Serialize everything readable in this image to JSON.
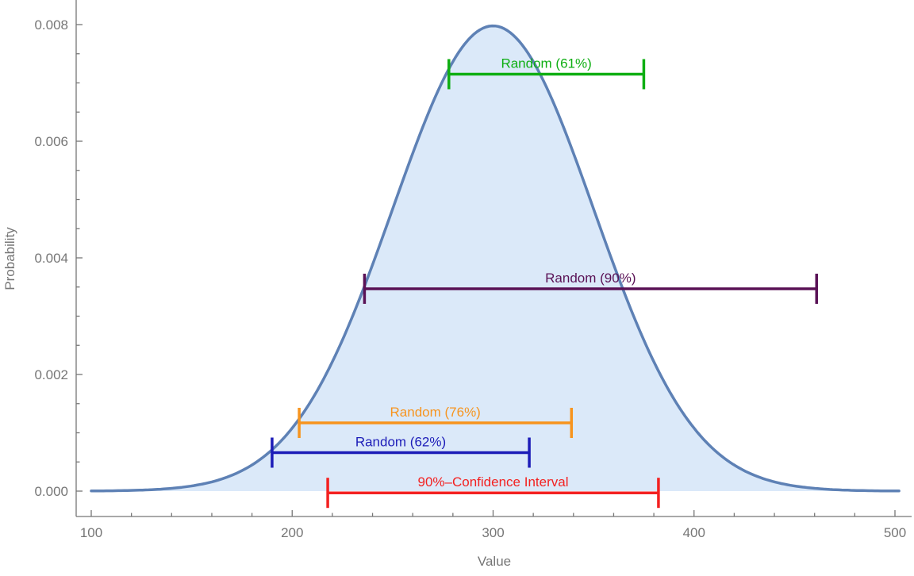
{
  "figure": {
    "background": "#ffffff"
  },
  "chart_data": {
    "type": "area",
    "title": "",
    "xlabel": "Value",
    "ylabel": "Probability",
    "xlim": [
      92.5,
      508
    ],
    "ylim": [
      0,
      0.00842
    ],
    "grid": false,
    "legend": "none",
    "axis_color": "#767676",
    "x_ticks": [
      100,
      200,
      300,
      400,
      500
    ],
    "x_tick_labels": [
      "100",
      "200",
      "300",
      "400",
      "500"
    ],
    "x_minor_tick_step": 20,
    "y_ticks": [
      0,
      0.002,
      0.004,
      0.006,
      0.008
    ],
    "y_tick_labels": [
      "0.000",
      "0.002",
      "0.004",
      "0.006",
      "0.008"
    ],
    "y_minor_tick_step": 0.0005,
    "distribution": {
      "type": "normal",
      "mean": 300,
      "sd": 50,
      "peak_density": 0.00798,
      "x_range": [
        100,
        503
      ],
      "curve_color": "#5e81b5",
      "fill_color": "#dbe9f9"
    },
    "intervals": [
      {
        "name": "random-61",
        "label": "Random (61%)",
        "min": 278,
        "max": 375,
        "y": 0.00715,
        "color": "#0eae12"
      },
      {
        "name": "random-90",
        "label": "Random (90%)",
        "min": 236,
        "max": 461,
        "y": 0.00347,
        "color": "#5a1256"
      },
      {
        "name": "random-76",
        "label": "Random (76%)",
        "min": 203.5,
        "max": 339,
        "y": 0.00117,
        "color": "#f7941e"
      },
      {
        "name": "random-62",
        "label": "Random (62%)",
        "min": 190,
        "max": 318,
        "y": 0.00066,
        "color": "#1c1cb8"
      },
      {
        "name": "confidence-90",
        "label": "90%–Confidence Interval",
        "min": 217.7,
        "max": 382.3,
        "y": -3e-05,
        "color": "#f32121"
      }
    ]
  }
}
